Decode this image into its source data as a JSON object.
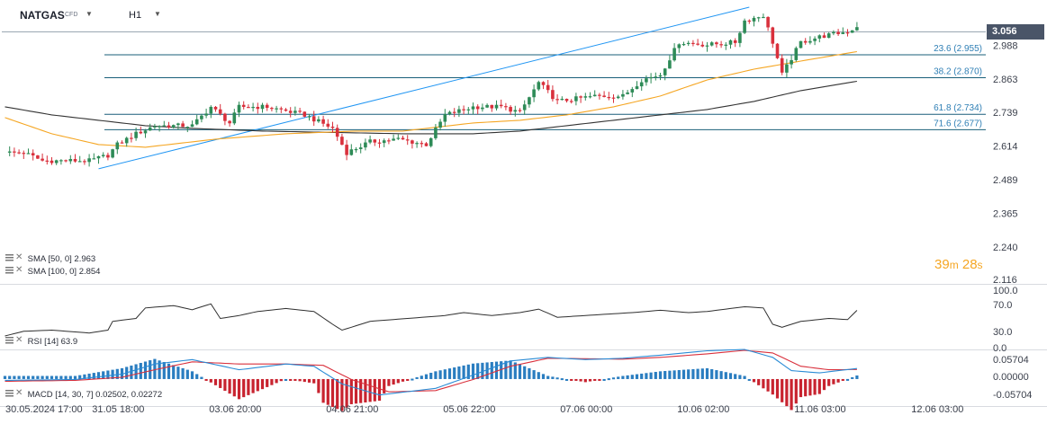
{
  "toolbar": {
    "symbol": "NATGAS",
    "symbol_type": "CFD",
    "timeframe": "H1"
  },
  "last_price": "3.056",
  "countdown": {
    "minutes": "39",
    "min_unit": "m",
    "seconds": "28",
    "sec_unit": "s"
  },
  "indicators": {
    "sma50": {
      "label": "SMA [50, 0]",
      "value": "2.963"
    },
    "sma100": {
      "label": "SMA [100, 0]",
      "value": "2.854"
    },
    "rsi": {
      "label": "RSI [14]",
      "value": "63.9"
    },
    "macd": {
      "label": "MACD [14, 30, 7]",
      "value1": "0.02502,",
      "value2": "0.02272"
    }
  },
  "colors": {
    "bull": "#2e8b57",
    "bear": "#d9303c",
    "sma50": "#f5a623",
    "sma100": "#333333",
    "fib_line": "#1a5f7a",
    "fib_label": "#2f7fb5",
    "trend": "#2196f3",
    "macd_signal": "#d9303c",
    "macd_line": "#2a8bd5"
  },
  "chart_data": {
    "type": "candlestick",
    "interval": "H1",
    "price_axis": {
      "ylim": [
        2.116,
        3.09
      ],
      "ticks": [
        "2.988",
        "2.863",
        "2.739",
        "2.614",
        "2.489",
        "2.365",
        "2.240",
        "2.116"
      ]
    },
    "time_axis": {
      "labels": [
        "30.05.2024 17:00",
        "31.05 18:00",
        "03.06 20:00",
        "04.06 21:00",
        "05.06 22:00",
        "07.06 00:00",
        "10.06 02:00",
        "11.06 03:00",
        "12.06 03:00"
      ],
      "label_bars": [
        0,
        24,
        49,
        74,
        99,
        124,
        149,
        174,
        199
      ]
    },
    "fib_levels": [
      {
        "ratio": "23.6",
        "price": 2.955,
        "label": "23.6 (2.955)"
      },
      {
        "ratio": "38.2",
        "price": 2.87,
        "label": "38.2 (2.870)"
      },
      {
        "ratio": "61.8",
        "price": 2.734,
        "label": "61.8 (2.734)"
      },
      {
        "ratio": "71.6",
        "price": 2.677,
        "label": "71.6 (2.677)"
      }
    ],
    "trendline": {
      "from": [
        20,
        2.53
      ],
      "to": [
        159,
        3.13
      ]
    },
    "candles_path": [
      [
        0,
        2.59
      ],
      [
        4,
        2.59
      ],
      [
        8,
        2.56
      ],
      [
        12,
        2.56
      ],
      [
        18,
        2.56
      ],
      [
        22,
        2.58
      ],
      [
        24,
        2.62
      ],
      [
        28,
        2.66
      ],
      [
        32,
        2.69
      ],
      [
        40,
        2.69
      ],
      [
        44,
        2.76
      ],
      [
        48,
        2.7
      ],
      [
        50,
        2.76
      ],
      [
        56,
        2.76
      ],
      [
        64,
        2.73
      ],
      [
        70,
        2.68
      ],
      [
        73,
        2.59
      ],
      [
        78,
        2.63
      ],
      [
        84,
        2.64
      ],
      [
        90,
        2.62
      ],
      [
        94,
        2.73
      ],
      [
        100,
        2.76
      ],
      [
        106,
        2.76
      ],
      [
        110,
        2.74
      ],
      [
        114,
        2.85
      ],
      [
        118,
        2.78
      ],
      [
        126,
        2.8
      ],
      [
        132,
        2.8
      ],
      [
        136,
        2.86
      ],
      [
        140,
        2.88
      ],
      [
        144,
        3.0
      ],
      [
        150,
        2.99
      ],
      [
        156,
        3.0
      ],
      [
        158,
        3.08
      ],
      [
        162,
        3.1
      ],
      [
        164,
        3.0
      ],
      [
        166,
        2.88
      ],
      [
        170,
        3.0
      ],
      [
        174,
        3.02
      ],
      [
        180,
        3.04
      ],
      [
        182,
        3.056
      ]
    ],
    "sma50_path": [
      [
        0,
        2.72
      ],
      [
        10,
        2.66
      ],
      [
        20,
        2.62
      ],
      [
        30,
        2.61
      ],
      [
        45,
        2.64
      ],
      [
        60,
        2.66
      ],
      [
        75,
        2.67
      ],
      [
        85,
        2.67
      ],
      [
        100,
        2.7
      ],
      [
        110,
        2.71
      ],
      [
        120,
        2.73
      ],
      [
        130,
        2.76
      ],
      [
        140,
        2.8
      ],
      [
        150,
        2.86
      ],
      [
        160,
        2.9
      ],
      [
        170,
        2.93
      ],
      [
        182,
        2.965
      ]
    ],
    "sma100_path": [
      [
        0,
        2.76
      ],
      [
        10,
        2.73
      ],
      [
        20,
        2.71
      ],
      [
        30,
        2.69
      ],
      [
        40,
        2.68
      ],
      [
        55,
        2.67
      ],
      [
        70,
        2.665
      ],
      [
        85,
        2.66
      ],
      [
        100,
        2.66
      ],
      [
        110,
        2.67
      ],
      [
        120,
        2.69
      ],
      [
        130,
        2.71
      ],
      [
        140,
        2.73
      ],
      [
        150,
        2.75
      ],
      [
        160,
        2.78
      ],
      [
        170,
        2.82
      ],
      [
        182,
        2.855
      ]
    ],
    "rsi": {
      "ylim": [
        0,
        100
      ],
      "ticks": [
        "100.0",
        "70.0",
        "30.0",
        "0.0"
      ],
      "path": [
        [
          0,
          20
        ],
        [
          4,
          28
        ],
        [
          10,
          30
        ],
        [
          18,
          25
        ],
        [
          22,
          30
        ],
        [
          23,
          45
        ],
        [
          28,
          50
        ],
        [
          30,
          68
        ],
        [
          36,
          72
        ],
        [
          40,
          65
        ],
        [
          44,
          75
        ],
        [
          46,
          50
        ],
        [
          50,
          55
        ],
        [
          54,
          62
        ],
        [
          60,
          67
        ],
        [
          66,
          62
        ],
        [
          70,
          40
        ],
        [
          72,
          30
        ],
        [
          78,
          45
        ],
        [
          86,
          50
        ],
        [
          94,
          55
        ],
        [
          98,
          60
        ],
        [
          104,
          55
        ],
        [
          110,
          60
        ],
        [
          114,
          66
        ],
        [
          118,
          52
        ],
        [
          124,
          55
        ],
        [
          134,
          60
        ],
        [
          140,
          64
        ],
        [
          146,
          60
        ],
        [
          150,
          62
        ],
        [
          158,
          70
        ],
        [
          162,
          68
        ],
        [
          164,
          40
        ],
        [
          166,
          35
        ],
        [
          170,
          45
        ],
        [
          176,
          50
        ],
        [
          180,
          48
        ],
        [
          182,
          63.9
        ]
      ]
    },
    "macd": {
      "ylim": [
        -0.06,
        0.07
      ],
      "ticks": [
        "0.05704",
        "0.00000",
        "-0.05704"
      ],
      "macd_path": [
        [
          0,
          -0.002
        ],
        [
          15,
          0.0
        ],
        [
          25,
          0.012
        ],
        [
          32,
          0.035
        ],
        [
          40,
          0.045
        ],
        [
          50,
          0.022
        ],
        [
          60,
          0.035
        ],
        [
          66,
          0.03
        ],
        [
          72,
          -0.01
        ],
        [
          80,
          -0.035
        ],
        [
          92,
          -0.02
        ],
        [
          100,
          0.01
        ],
        [
          108,
          0.042
        ],
        [
          116,
          0.05
        ],
        [
          124,
          0.045
        ],
        [
          132,
          0.048
        ],
        [
          140,
          0.055
        ],
        [
          150,
          0.065
        ],
        [
          158,
          0.068
        ],
        [
          164,
          0.05
        ],
        [
          168,
          0.02
        ],
        [
          174,
          0.015
        ],
        [
          182,
          0.025
        ]
      ],
      "signal_path": [
        [
          0,
          -0.004
        ],
        [
          15,
          -0.002
        ],
        [
          25,
          0.005
        ],
        [
          32,
          0.022
        ],
        [
          40,
          0.04
        ],
        [
          50,
          0.035
        ],
        [
          60,
          0.035
        ],
        [
          68,
          0.032
        ],
        [
          74,
          0.0
        ],
        [
          82,
          -0.028
        ],
        [
          92,
          -0.025
        ],
        [
          100,
          0.0
        ],
        [
          108,
          0.03
        ],
        [
          116,
          0.048
        ],
        [
          124,
          0.047
        ],
        [
          132,
          0.046
        ],
        [
          140,
          0.05
        ],
        [
          150,
          0.058
        ],
        [
          158,
          0.066
        ],
        [
          164,
          0.06
        ],
        [
          170,
          0.03
        ],
        [
          176,
          0.022
        ],
        [
          182,
          0.0227
        ]
      ]
    }
  }
}
